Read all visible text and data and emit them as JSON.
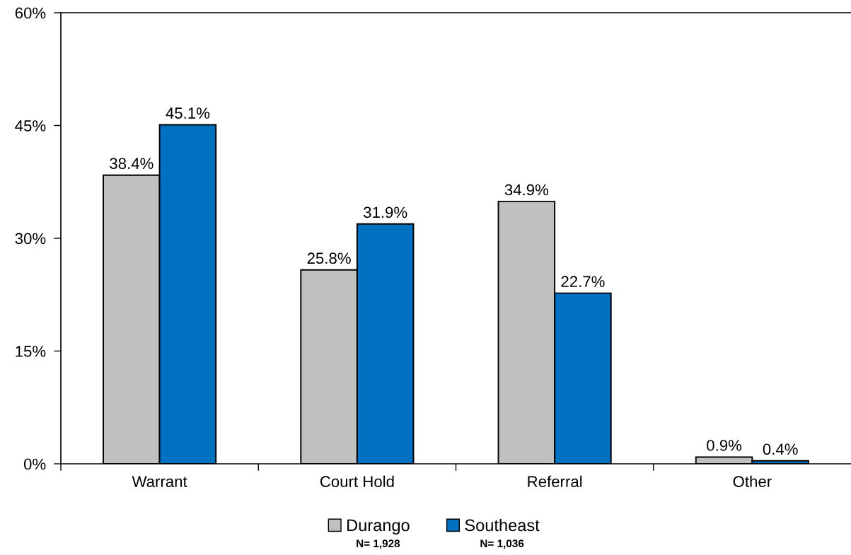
{
  "chart_data": {
    "type": "bar",
    "categories": [
      "Warrant",
      "Court Hold",
      "Referral",
      "Other"
    ],
    "series": [
      {
        "name": "Durango",
        "color": "#c0c0c0",
        "values": [
          38.4,
          25.8,
          34.9,
          0.9
        ],
        "value_labels": [
          "38.4%",
          "25.8%",
          "34.9%",
          "0.9%"
        ]
      },
      {
        "name": "Southeast",
        "color": "#0070c0",
        "values": [
          45.1,
          31.9,
          22.7,
          0.4
        ],
        "value_labels": [
          "45.1%",
          "31.9%",
          "22.7%",
          "0.4%"
        ]
      }
    ],
    "ylim": [
      0,
      60
    ],
    "yticks": [
      {
        "value": 0,
        "label": "0%"
      },
      {
        "value": 15,
        "label": "15%"
      },
      {
        "value": 30,
        "label": "30%"
      },
      {
        "value": 45,
        "label": "45%"
      },
      {
        "value": 60,
        "label": "60%"
      }
    ],
    "legend": "bottom",
    "annotations": [
      "N= 1,928",
      "N= 1,036"
    ]
  }
}
